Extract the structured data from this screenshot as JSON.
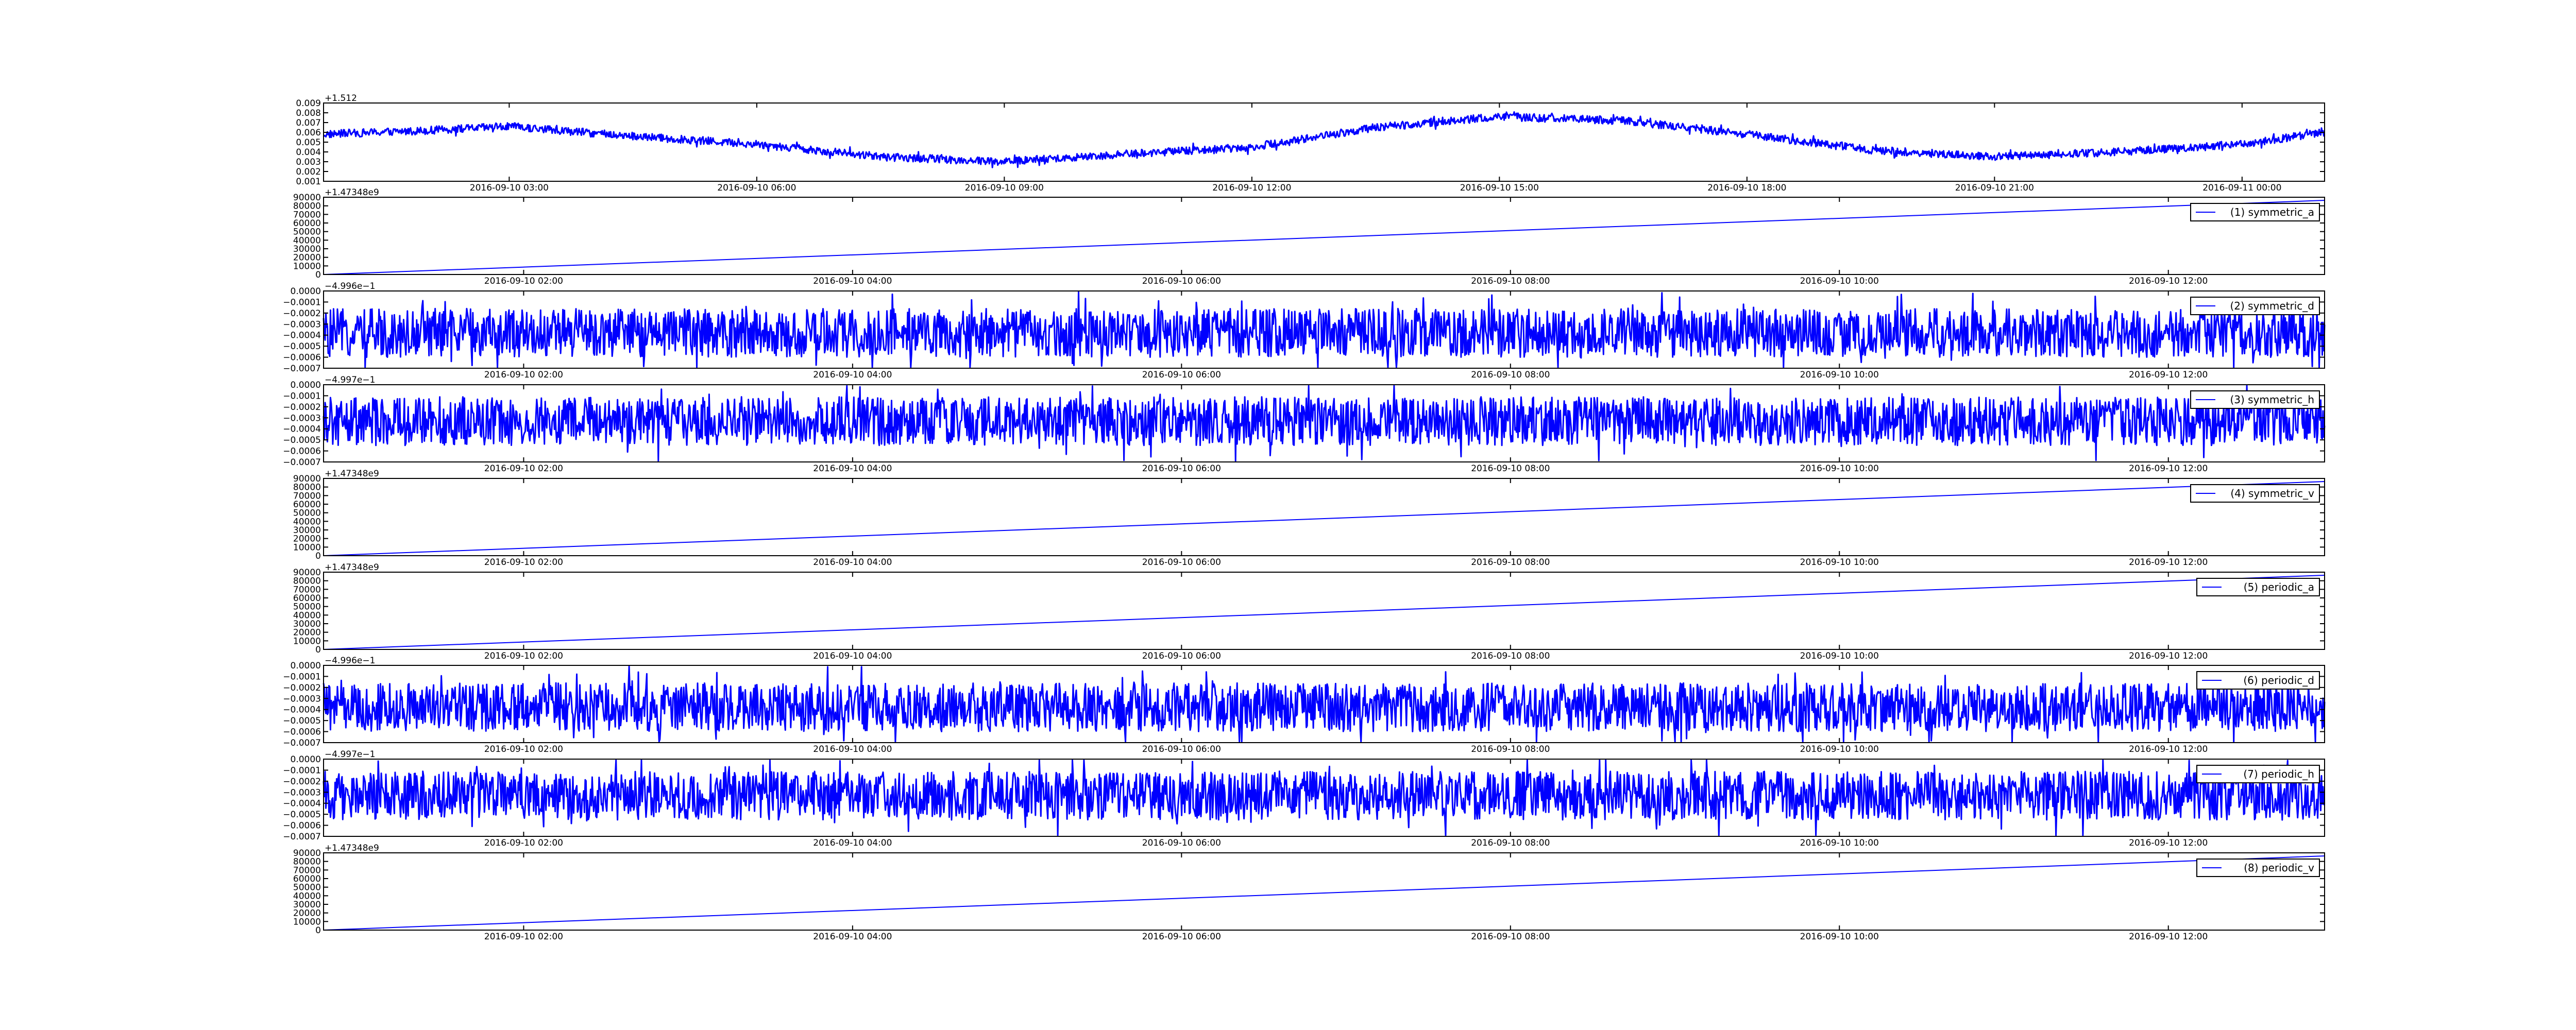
{
  "chart_data": [
    {
      "type": "line",
      "offset_label": "+1.512",
      "yticks": [
        "0.001",
        "0.002",
        "0.003",
        "0.004",
        "0.005",
        "0.006",
        "0.007",
        "0.008",
        "0.009"
      ],
      "ylim": [
        0.001,
        0.009
      ],
      "xticks": [
        "2016-09-10 03:00",
        "2016-09-10 06:00",
        "2016-09-10 09:00",
        "2016-09-10 12:00",
        "2016-09-10 15:00",
        "2016-09-10 18:00",
        "2016-09-10 21:00",
        "2016-09-11 00:00"
      ],
      "xlim": [
        "2016-09-10 00:45",
        "2016-09-11 01:00"
      ],
      "x": [
        "2016-09-10 00:45",
        "2016-09-10 02:00",
        "2016-09-10 03:00",
        "2016-09-10 04:30",
        "2016-09-10 06:00",
        "2016-09-10 07:30",
        "2016-09-10 09:00",
        "2016-09-10 10:30",
        "2016-09-10 12:00",
        "2016-09-10 13:30",
        "2016-09-10 15:00",
        "2016-09-10 16:30",
        "2016-09-10 18:00",
        "2016-09-10 19:30",
        "2016-09-10 21:00",
        "2016-09-10 22:30",
        "2016-09-11 00:00",
        "2016-09-11 01:00"
      ],
      "values": [
        0.0058,
        0.0062,
        0.0066,
        0.0056,
        0.0048,
        0.0035,
        0.003,
        0.0038,
        0.0045,
        0.0065,
        0.0076,
        0.0072,
        0.0058,
        0.0042,
        0.0035,
        0.004,
        0.0048,
        0.006
      ],
      "noise": 0.0004,
      "legend": ""
    },
    {
      "type": "line",
      "offset_label": "+1.47348e9",
      "yticks": [
        "0",
        "10000",
        "20000",
        "30000",
        "40000",
        "50000",
        "60000",
        "70000",
        "80000",
        "90000"
      ],
      "ylim": [
        0,
        90000
      ],
      "xticks": [
        "2016-09-10 02:00",
        "2016-09-10 04:00",
        "2016-09-10 06:00",
        "2016-09-10 08:00",
        "2016-09-10 10:00",
        "2016-09-10 12:00"
      ],
      "xlim": [
        "2016-09-10 00:47",
        "2016-09-10 12:57"
      ],
      "x": [
        "2016-09-10 00:47",
        "2016-09-10 12:57"
      ],
      "values": [
        0,
        86400
      ],
      "noise": 0,
      "legend": "(1) symmetric_a"
    },
    {
      "type": "line",
      "offset_label": "−4.996e−1",
      "yticks": [
        "−0.0007",
        "−0.0006",
        "−0.0005",
        "−0.0004",
        "−0.0003",
        "−0.0002",
        "−0.0001",
        "0.0000"
      ],
      "ylim": [
        -0.0007,
        0.0
      ],
      "xticks": [
        "2016-09-10 02:00",
        "2016-09-10 04:00",
        "2016-09-10 06:00",
        "2016-09-10 08:00",
        "2016-09-10 10:00",
        "2016-09-10 12:00"
      ],
      "xlim": [
        "2016-09-10 00:47",
        "2016-09-10 12:57"
      ],
      "x": [
        "2016-09-10 00:47",
        "2016-09-10 12:57"
      ],
      "values": [
        -0.00038,
        -0.00038
      ],
      "noise": 0.00022,
      "legend": "(2) symmetric_d"
    },
    {
      "type": "line",
      "offset_label": "−4.997e−1",
      "yticks": [
        "−0.0007",
        "−0.0006",
        "−0.0005",
        "−0.0004",
        "−0.0003",
        "−0.0002",
        "−0.0001",
        "0.0000"
      ],
      "ylim": [
        -0.0007,
        0.0
      ],
      "xticks": [
        "2016-09-10 02:00",
        "2016-09-10 04:00",
        "2016-09-10 06:00",
        "2016-09-10 08:00",
        "2016-09-10 10:00",
        "2016-09-10 12:00"
      ],
      "xlim": [
        "2016-09-10 00:47",
        "2016-09-10 12:57"
      ],
      "x": [
        "2016-09-10 00:47",
        "2016-09-10 12:57"
      ],
      "values": [
        -0.00033,
        -0.00033
      ],
      "noise": 0.00022,
      "legend": "(3) symmetric_h"
    },
    {
      "type": "line",
      "offset_label": "+1.47348e9",
      "yticks": [
        "0",
        "10000",
        "20000",
        "30000",
        "40000",
        "50000",
        "60000",
        "70000",
        "80000",
        "90000"
      ],
      "ylim": [
        0,
        90000
      ],
      "xticks": [
        "2016-09-10 02:00",
        "2016-09-10 04:00",
        "2016-09-10 06:00",
        "2016-09-10 08:00",
        "2016-09-10 10:00",
        "2016-09-10 12:00"
      ],
      "xlim": [
        "2016-09-10 00:47",
        "2016-09-10 12:57"
      ],
      "x": [
        "2016-09-10 00:47",
        "2016-09-10 12:57"
      ],
      "values": [
        0,
        86400
      ],
      "noise": 0,
      "legend": "(4) symmetric_v"
    },
    {
      "type": "line",
      "offset_label": "+1.47348e9",
      "yticks": [
        "0",
        "10000",
        "20000",
        "30000",
        "40000",
        "50000",
        "60000",
        "70000",
        "80000",
        "90000"
      ],
      "ylim": [
        0,
        90000
      ],
      "xticks": [
        "2016-09-10 02:00",
        "2016-09-10 04:00",
        "2016-09-10 06:00",
        "2016-09-10 08:00",
        "2016-09-10 10:00",
        "2016-09-10 12:00"
      ],
      "xlim": [
        "2016-09-10 00:47",
        "2016-09-10 12:57"
      ],
      "x": [
        "2016-09-10 00:47",
        "2016-09-10 12:57"
      ],
      "values": [
        0,
        86400
      ],
      "noise": 0,
      "legend": "(5) periodic_a"
    },
    {
      "type": "line",
      "offset_label": "−4.996e−1",
      "yticks": [
        "−0.0007",
        "−0.0006",
        "−0.0005",
        "−0.0004",
        "−0.0003",
        "−0.0002",
        "−0.0001",
        "0.0000"
      ],
      "ylim": [
        -0.0007,
        0.0
      ],
      "xticks": [
        "2016-09-10 02:00",
        "2016-09-10 04:00",
        "2016-09-10 06:00",
        "2016-09-10 08:00",
        "2016-09-10 10:00",
        "2016-09-10 12:00"
      ],
      "xlim": [
        "2016-09-10 00:47",
        "2016-09-10 12:57"
      ],
      "x": [
        "2016-09-10 00:47",
        "2016-09-10 12:57"
      ],
      "values": [
        -0.00038,
        -0.00038
      ],
      "noise": 0.00022,
      "legend": "(6) periodic_d"
    },
    {
      "type": "line",
      "offset_label": "−4.997e−1",
      "yticks": [
        "−0.0007",
        "−0.0006",
        "−0.0005",
        "−0.0004",
        "−0.0003",
        "−0.0002",
        "−0.0001",
        "0.0000"
      ],
      "ylim": [
        -0.0007,
        0.0
      ],
      "xticks": [
        "2016-09-10 02:00",
        "2016-09-10 04:00",
        "2016-09-10 06:00",
        "2016-09-10 08:00",
        "2016-09-10 10:00",
        "2016-09-10 12:00"
      ],
      "xlim": [
        "2016-09-10 00:47",
        "2016-09-10 12:57"
      ],
      "x": [
        "2016-09-10 00:47",
        "2016-09-10 12:57"
      ],
      "values": [
        -0.00033,
        -0.00033
      ],
      "noise": 0.00022,
      "legend": "(7) periodic_h"
    },
    {
      "type": "line",
      "offset_label": "+1.47348e9",
      "yticks": [
        "0",
        "10000",
        "20000",
        "30000",
        "40000",
        "50000",
        "60000",
        "70000",
        "80000",
        "90000"
      ],
      "ylim": [
        0,
        90000
      ],
      "xticks": [
        "2016-09-10 02:00",
        "2016-09-10 04:00",
        "2016-09-10 06:00",
        "2016-09-10 08:00",
        "2016-09-10 10:00",
        "2016-09-10 12:00"
      ],
      "xlim": [
        "2016-09-10 00:47",
        "2016-09-10 12:57"
      ],
      "x": [
        "2016-09-10 00:47",
        "2016-09-10 12:57"
      ],
      "values": [
        0,
        86400
      ],
      "noise": 0,
      "legend": "(8) periodic_v"
    }
  ],
  "colors": {
    "trace": "#0000ff",
    "axes": "#000000",
    "background": "#ffffff"
  }
}
